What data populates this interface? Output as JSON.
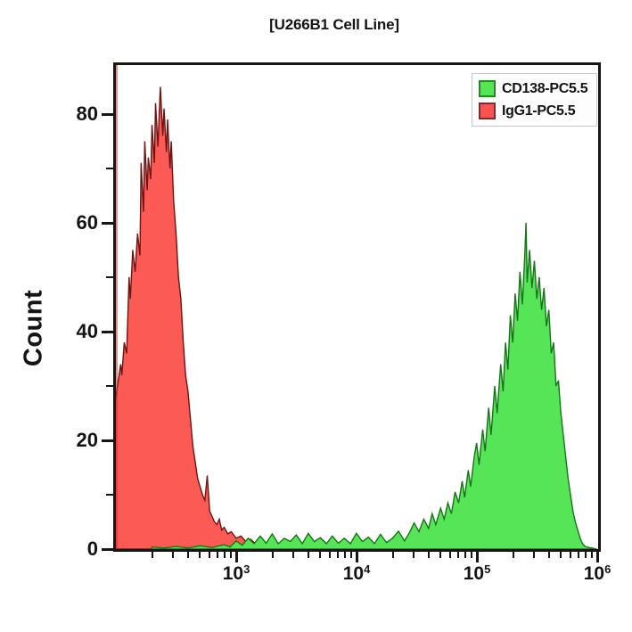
{
  "title": "[U266B1 Cell Line]",
  "y_axis": {
    "label": "Count",
    "tick_labels": [
      "80",
      "60",
      "40",
      "20",
      "0"
    ]
  },
  "x_axis": {
    "tick_labels": [
      {
        "base": "10",
        "exp": "3"
      },
      {
        "base": "10",
        "exp": "4"
      },
      {
        "base": "10",
        "exp": "5"
      },
      {
        "base": "10",
        "exp": "6"
      }
    ]
  },
  "legend": {
    "items": [
      {
        "label": "CD138-PC5.5",
        "fill": "#55e557",
        "border": "#1f8c1f"
      },
      {
        "label": "IgG1-PC5.5",
        "fill": "#f95352",
        "border": "#9c2020"
      }
    ]
  },
  "chart_data": {
    "type": "area",
    "subtype": "flow-cytometry-histogram",
    "title": "[U266B1 Cell Line]",
    "xlabel": "",
    "ylabel": "Count",
    "x_scale": "log10",
    "xlim_log10": [
      2.0,
      6.01
    ],
    "ylim": [
      0,
      89
    ],
    "grid": false,
    "legend_position": "top-right-inside",
    "y_major_ticks": [
      0,
      20,
      40,
      60,
      80
    ],
    "y_minor_ticks": [
      10,
      30,
      50,
      70
    ],
    "x_major_ticks_log10": [
      3,
      4,
      5,
      6
    ],
    "x_minor_ticks": "multiples 2-9 within each decade",
    "series": [
      {
        "name": "CD138-PC5.5",
        "fill": "#55e557",
        "stroke": "#177517",
        "draw_order": 2,
        "peak_log10x": 5.41,
        "peak_count": 60,
        "points_log10x_count": [
          [
            2.3,
            0.4
          ],
          [
            2.4,
            0.2
          ],
          [
            2.5,
            0.5
          ],
          [
            2.6,
            0.2
          ],
          [
            2.7,
            0.6
          ],
          [
            2.8,
            0.3
          ],
          [
            2.9,
            0.8
          ],
          [
            2.95,
            0.4
          ],
          [
            3.0,
            1.5
          ],
          [
            3.05,
            0.7
          ],
          [
            3.1,
            2
          ],
          [
            3.15,
            1
          ],
          [
            3.2,
            2.4
          ],
          [
            3.25,
            1.1
          ],
          [
            3.3,
            2.8
          ],
          [
            3.35,
            1
          ],
          [
            3.4,
            2
          ],
          [
            3.45,
            1.4
          ],
          [
            3.5,
            2.6
          ],
          [
            3.55,
            1
          ],
          [
            3.6,
            2.9
          ],
          [
            3.65,
            1.4
          ],
          [
            3.7,
            2.1
          ],
          [
            3.75,
            1
          ],
          [
            3.8,
            2.4
          ],
          [
            3.85,
            1.1
          ],
          [
            3.9,
            2
          ],
          [
            3.95,
            1
          ],
          [
            4.0,
            2.9
          ],
          [
            4.05,
            1.4
          ],
          [
            4.1,
            2.2
          ],
          [
            4.15,
            1
          ],
          [
            4.2,
            2.7
          ],
          [
            4.25,
            1.2
          ],
          [
            4.3,
            2
          ],
          [
            4.35,
            3.3
          ],
          [
            4.4,
            1.5
          ],
          [
            4.44,
            3
          ],
          [
            4.48,
            4.8
          ],
          [
            4.52,
            3.2
          ],
          [
            4.56,
            5.5
          ],
          [
            4.6,
            3.8
          ],
          [
            4.63,
            6.5
          ],
          [
            4.66,
            4.5
          ],
          [
            4.7,
            7.5
          ],
          [
            4.73,
            5.5
          ],
          [
            4.76,
            8.5
          ],
          [
            4.79,
            6.5
          ],
          [
            4.82,
            10.5
          ],
          [
            4.85,
            8.5
          ],
          [
            4.88,
            12.5
          ],
          [
            4.9,
            9.5
          ],
          [
            4.93,
            14.5
          ],
          [
            4.95,
            11.5
          ],
          [
            4.98,
            17
          ],
          [
            5.0,
            19.5
          ],
          [
            5.02,
            15.5
          ],
          [
            5.05,
            22
          ],
          [
            5.07,
            18
          ],
          [
            5.1,
            26
          ],
          [
            5.12,
            21
          ],
          [
            5.15,
            30
          ],
          [
            5.17,
            25
          ],
          [
            5.2,
            34
          ],
          [
            5.22,
            29
          ],
          [
            5.24,
            38
          ],
          [
            5.26,
            33
          ],
          [
            5.28,
            43
          ],
          [
            5.3,
            38
          ],
          [
            5.32,
            47
          ],
          [
            5.34,
            42
          ],
          [
            5.36,
            51
          ],
          [
            5.38,
            45
          ],
          [
            5.4,
            54
          ],
          [
            5.41,
            60
          ],
          [
            5.42,
            49
          ],
          [
            5.44,
            55
          ],
          [
            5.46,
            48
          ],
          [
            5.48,
            53
          ],
          [
            5.5,
            46
          ],
          [
            5.52,
            50
          ],
          [
            5.54,
            44
          ],
          [
            5.56,
            48
          ],
          [
            5.58,
            41
          ],
          [
            5.6,
            44
          ],
          [
            5.62,
            36
          ],
          [
            5.64,
            38
          ],
          [
            5.66,
            30
          ],
          [
            5.68,
            31
          ],
          [
            5.7,
            25
          ],
          [
            5.72,
            21
          ],
          [
            5.74,
            17
          ],
          [
            5.76,
            13
          ],
          [
            5.78,
            10
          ],
          [
            5.8,
            7
          ],
          [
            5.82,
            5
          ],
          [
            5.84,
            3.5
          ],
          [
            5.86,
            2
          ],
          [
            5.88,
            1
          ],
          [
            5.9,
            0.5
          ],
          [
            5.93,
            0.3
          ],
          [
            5.96,
            0.2
          ],
          [
            6.0,
            0
          ]
        ]
      },
      {
        "name": "IgG1-PC5.5",
        "fill": "#fb5a55",
        "stroke": "#6f1413",
        "draw_order": 1,
        "peak_log10x": 2.37,
        "peak_count": 85,
        "points_log10x_count": [
          [
            1.978,
            26
          ],
          [
            2.0,
            28
          ],
          [
            2.02,
            31
          ],
          [
            2.04,
            34
          ],
          [
            2.05,
            32
          ],
          [
            2.07,
            38
          ],
          [
            2.09,
            36
          ],
          [
            2.11,
            50
          ],
          [
            2.12,
            46
          ],
          [
            2.14,
            55
          ],
          [
            2.16,
            51
          ],
          [
            2.18,
            58
          ],
          [
            2.2,
            54
          ],
          [
            2.21,
            71
          ],
          [
            2.23,
            62
          ],
          [
            2.24,
            75
          ],
          [
            2.26,
            66
          ],
          [
            2.27,
            72
          ],
          [
            2.29,
            68
          ],
          [
            2.3,
            78
          ],
          [
            2.32,
            71
          ],
          [
            2.33,
            82
          ],
          [
            2.35,
            74
          ],
          [
            2.36,
            80
          ],
          [
            2.37,
            85
          ],
          [
            2.39,
            76
          ],
          [
            2.4,
            81
          ],
          [
            2.42,
            73
          ],
          [
            2.43,
            79
          ],
          [
            2.45,
            70
          ],
          [
            2.46,
            75
          ],
          [
            2.48,
            64
          ],
          [
            2.5,
            58
          ],
          [
            2.52,
            50
          ],
          [
            2.54,
            46
          ],
          [
            2.56,
            38
          ],
          [
            2.58,
            32
          ],
          [
            2.6,
            29
          ],
          [
            2.62,
            24
          ],
          [
            2.64,
            19
          ],
          [
            2.66,
            16
          ],
          [
            2.68,
            13
          ],
          [
            2.7,
            11.5
          ],
          [
            2.72,
            10
          ],
          [
            2.74,
            9
          ],
          [
            2.76,
            13.5
          ],
          [
            2.78,
            7
          ],
          [
            2.8,
            6
          ],
          [
            2.82,
            5
          ],
          [
            2.84,
            4.5
          ],
          [
            2.86,
            5.5
          ],
          [
            2.88,
            3.5
          ],
          [
            2.9,
            4
          ],
          [
            2.93,
            2.8
          ],
          [
            2.96,
            3.2
          ],
          [
            3.0,
            2
          ],
          [
            3.04,
            2.4
          ],
          [
            3.08,
            1.4
          ],
          [
            3.12,
            1.8
          ],
          [
            3.16,
            1
          ],
          [
            3.2,
            1.3
          ],
          [
            3.25,
            0.6
          ],
          [
            3.3,
            0
          ]
        ]
      }
    ]
  }
}
